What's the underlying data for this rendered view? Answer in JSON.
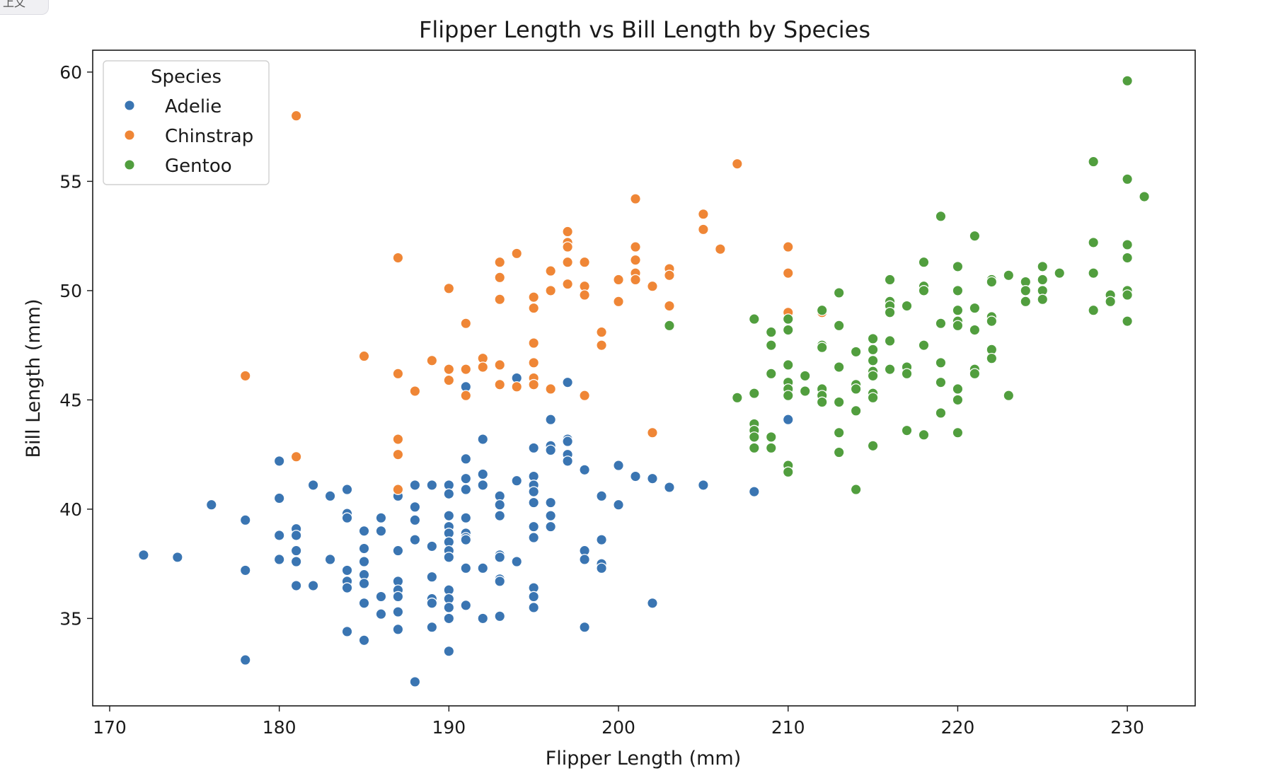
{
  "corner_tab": {
    "label": "上文"
  },
  "chart_data": {
    "type": "scatter",
    "title": "Flipper Length vs Bill Length by Species",
    "xlabel": "Flipper Length (mm)",
    "ylabel": "Bill Length (mm)",
    "xlim": [
      169,
      234
    ],
    "ylim": [
      31.0,
      61.0
    ],
    "xticks": [
      170,
      180,
      190,
      200,
      210,
      220,
      230
    ],
    "yticks": [
      35,
      40,
      45,
      50,
      55,
      60
    ],
    "grid": false,
    "legend": {
      "title": "Species",
      "placement": "upper-left"
    },
    "series": [
      {
        "name": "Adelie",
        "color": "#3a75b2",
        "points": [
          [
            172,
            37.9
          ],
          [
            174,
            37.8
          ],
          [
            176,
            40.2
          ],
          [
            178,
            39.5
          ],
          [
            178,
            37.2
          ],
          [
            178,
            33.1
          ],
          [
            180,
            42.2
          ],
          [
            180,
            40.5
          ],
          [
            180,
            38.8
          ],
          [
            180,
            37.7
          ],
          [
            181,
            39.1
          ],
          [
            181,
            38.8
          ],
          [
            181,
            38.1
          ],
          [
            181,
            37.6
          ],
          [
            181,
            36.5
          ],
          [
            182,
            41.1
          ],
          [
            182,
            36.5
          ],
          [
            183,
            40.6
          ],
          [
            183,
            37.7
          ],
          [
            184,
            40.9
          ],
          [
            184,
            39.8
          ],
          [
            184,
            39.6
          ],
          [
            184,
            37.2
          ],
          [
            184,
            36.7
          ],
          [
            184,
            36.4
          ],
          [
            184,
            34.4
          ],
          [
            185,
            39.0
          ],
          [
            185,
            38.2
          ],
          [
            185,
            37.6
          ],
          [
            185,
            37.0
          ],
          [
            185,
            36.6
          ],
          [
            185,
            35.7
          ],
          [
            185,
            34.0
          ],
          [
            186,
            39.6
          ],
          [
            186,
            39.0
          ],
          [
            186,
            36.0
          ],
          [
            186,
            35.2
          ],
          [
            187,
            40.6
          ],
          [
            187,
            38.1
          ],
          [
            187,
            36.7
          ],
          [
            187,
            36.3
          ],
          [
            187,
            36.0
          ],
          [
            187,
            35.3
          ],
          [
            187,
            34.5
          ],
          [
            188,
            41.1
          ],
          [
            188,
            40.1
          ],
          [
            188,
            39.5
          ],
          [
            188,
            38.6
          ],
          [
            188,
            32.1
          ],
          [
            189,
            41.1
          ],
          [
            189,
            38.3
          ],
          [
            189,
            36.9
          ],
          [
            189,
            35.9
          ],
          [
            189,
            35.7
          ],
          [
            189,
            34.6
          ],
          [
            190,
            41.1
          ],
          [
            190,
            40.7
          ],
          [
            190,
            39.7
          ],
          [
            190,
            39.2
          ],
          [
            190,
            38.9
          ],
          [
            190,
            38.5
          ],
          [
            190,
            38.1
          ],
          [
            190,
            37.8
          ],
          [
            190,
            36.3
          ],
          [
            190,
            35.9
          ],
          [
            190,
            35.5
          ],
          [
            190,
            35.0
          ],
          [
            190,
            33.5
          ],
          [
            191,
            45.6
          ],
          [
            191,
            42.3
          ],
          [
            191,
            41.4
          ],
          [
            191,
            40.9
          ],
          [
            191,
            39.6
          ],
          [
            191,
            38.9
          ],
          [
            191,
            38.7
          ],
          [
            191,
            38.6
          ],
          [
            191,
            37.3
          ],
          [
            191,
            35.6
          ],
          [
            192,
            43.2
          ],
          [
            192,
            41.6
          ],
          [
            192,
            41.1
          ],
          [
            192,
            37.3
          ],
          [
            192,
            35.0
          ],
          [
            193,
            40.6
          ],
          [
            193,
            40.2
          ],
          [
            193,
            39.7
          ],
          [
            193,
            37.9
          ],
          [
            193,
            37.8
          ],
          [
            193,
            36.8
          ],
          [
            193,
            36.7
          ],
          [
            193,
            35.1
          ],
          [
            194,
            46.0
          ],
          [
            194,
            41.3
          ],
          [
            194,
            37.6
          ],
          [
            195,
            42.8
          ],
          [
            195,
            41.5
          ],
          [
            195,
            41.1
          ],
          [
            195,
            40.8
          ],
          [
            195,
            40.3
          ],
          [
            195,
            39.2
          ],
          [
            195,
            38.7
          ],
          [
            195,
            36.4
          ],
          [
            195,
            36.0
          ],
          [
            195,
            35.5
          ],
          [
            196,
            44.1
          ],
          [
            196,
            42.9
          ],
          [
            196,
            42.7
          ],
          [
            196,
            40.3
          ],
          [
            196,
            39.7
          ],
          [
            196,
            39.2
          ],
          [
            197,
            45.8
          ],
          [
            197,
            43.2
          ],
          [
            197,
            43.1
          ],
          [
            197,
            42.5
          ],
          [
            197,
            42.2
          ],
          [
            198,
            41.8
          ],
          [
            198,
            38.1
          ],
          [
            198,
            37.7
          ],
          [
            198,
            34.6
          ],
          [
            199,
            40.6
          ],
          [
            199,
            38.6
          ],
          [
            199,
            37.5
          ],
          [
            199,
            37.3
          ],
          [
            200,
            42.0
          ],
          [
            200,
            40.2
          ],
          [
            201,
            41.5
          ],
          [
            202,
            41.4
          ],
          [
            202,
            35.7
          ],
          [
            203,
            41.0
          ],
          [
            205,
            41.1
          ],
          [
            208,
            40.8
          ],
          [
            210,
            44.1
          ]
        ]
      },
      {
        "name": "Chinstrap",
        "color": "#ef8636",
        "points": [
          [
            178,
            46.1
          ],
          [
            181,
            58.0
          ],
          [
            181,
            42.4
          ],
          [
            185,
            47.0
          ],
          [
            187,
            51.5
          ],
          [
            187,
            46.2
          ],
          [
            187,
            43.2
          ],
          [
            187,
            42.5
          ],
          [
            187,
            40.9
          ],
          [
            188,
            45.4
          ],
          [
            189,
            46.8
          ],
          [
            190,
            50.1
          ],
          [
            190,
            46.4
          ],
          [
            190,
            45.9
          ],
          [
            191,
            48.5
          ],
          [
            191,
            46.4
          ],
          [
            191,
            45.2
          ],
          [
            192,
            46.9
          ],
          [
            192,
            46.5
          ],
          [
            193,
            51.3
          ],
          [
            193,
            50.6
          ],
          [
            193,
            49.6
          ],
          [
            193,
            46.6
          ],
          [
            193,
            45.7
          ],
          [
            194,
            51.7
          ],
          [
            194,
            45.6
          ],
          [
            195,
            49.7
          ],
          [
            195,
            49.2
          ],
          [
            195,
            47.6
          ],
          [
            195,
            46.7
          ],
          [
            195,
            46.0
          ],
          [
            195,
            45.7
          ],
          [
            196,
            50.9
          ],
          [
            196,
            50.0
          ],
          [
            196,
            45.5
          ],
          [
            197,
            52.7
          ],
          [
            197,
            52.2
          ],
          [
            197,
            52.0
          ],
          [
            197,
            51.3
          ],
          [
            197,
            50.3
          ],
          [
            198,
            51.3
          ],
          [
            198,
            50.2
          ],
          [
            198,
            49.8
          ],
          [
            198,
            45.2
          ],
          [
            199,
            48.1
          ],
          [
            199,
            47.5
          ],
          [
            200,
            50.5
          ],
          [
            200,
            49.5
          ],
          [
            201,
            54.2
          ],
          [
            201,
            52.0
          ],
          [
            201,
            51.4
          ],
          [
            201,
            50.8
          ],
          [
            201,
            50.5
          ],
          [
            202,
            50.2
          ],
          [
            202,
            43.5
          ],
          [
            203,
            51.0
          ],
          [
            203,
            50.7
          ],
          [
            203,
            49.3
          ],
          [
            205,
            53.5
          ],
          [
            205,
            52.8
          ],
          [
            206,
            51.9
          ],
          [
            207,
            55.8
          ],
          [
            210,
            52.0
          ],
          [
            210,
            50.8
          ],
          [
            210,
            49.0
          ],
          [
            212,
            49.0
          ]
        ]
      },
      {
        "name": "Gentoo",
        "color": "#519e3e",
        "points": [
          [
            203,
            48.4
          ],
          [
            207,
            45.1
          ],
          [
            208,
            48.7
          ],
          [
            208,
            45.3
          ],
          [
            208,
            43.9
          ],
          [
            208,
            43.6
          ],
          [
            208,
            43.3
          ],
          [
            208,
            42.8
          ],
          [
            209,
            48.1
          ],
          [
            209,
            47.5
          ],
          [
            209,
            46.2
          ],
          [
            209,
            43.3
          ],
          [
            209,
            42.8
          ],
          [
            210,
            48.7
          ],
          [
            210,
            48.2
          ],
          [
            210,
            46.6
          ],
          [
            210,
            45.8
          ],
          [
            210,
            45.5
          ],
          [
            210,
            45.2
          ],
          [
            210,
            42.0
          ],
          [
            210,
            41.7
          ],
          [
            211,
            46.1
          ],
          [
            211,
            45.4
          ],
          [
            212,
            49.1
          ],
          [
            212,
            47.5
          ],
          [
            212,
            47.4
          ],
          [
            212,
            45.5
          ],
          [
            212,
            45.2
          ],
          [
            212,
            44.9
          ],
          [
            213,
            49.9
          ],
          [
            213,
            48.4
          ],
          [
            213,
            46.5
          ],
          [
            213,
            44.9
          ],
          [
            213,
            43.5
          ],
          [
            213,
            42.6
          ],
          [
            214,
            47.2
          ],
          [
            214,
            45.7
          ],
          [
            214,
            45.5
          ],
          [
            214,
            44.5
          ],
          [
            214,
            40.9
          ],
          [
            215,
            47.8
          ],
          [
            215,
            47.3
          ],
          [
            215,
            46.8
          ],
          [
            215,
            46.3
          ],
          [
            215,
            46.1
          ],
          [
            215,
            45.3
          ],
          [
            215,
            45.1
          ],
          [
            215,
            42.9
          ],
          [
            216,
            50.5
          ],
          [
            216,
            49.5
          ],
          [
            216,
            49.3
          ],
          [
            216,
            49.0
          ],
          [
            216,
            47.7
          ],
          [
            216,
            46.4
          ],
          [
            217,
            49.3
          ],
          [
            217,
            46.5
          ],
          [
            217,
            46.2
          ],
          [
            217,
            43.6
          ],
          [
            218,
            51.3
          ],
          [
            218,
            50.2
          ],
          [
            218,
            50.0
          ],
          [
            218,
            47.5
          ],
          [
            218,
            43.4
          ],
          [
            219,
            53.4
          ],
          [
            219,
            48.5
          ],
          [
            219,
            46.7
          ],
          [
            219,
            45.8
          ],
          [
            219,
            44.4
          ],
          [
            220,
            51.1
          ],
          [
            220,
            50.0
          ],
          [
            220,
            49.1
          ],
          [
            220,
            48.6
          ],
          [
            220,
            48.4
          ],
          [
            220,
            45.5
          ],
          [
            220,
            45.0
          ],
          [
            220,
            43.5
          ],
          [
            221,
            52.5
          ],
          [
            221,
            49.2
          ],
          [
            221,
            48.2
          ],
          [
            221,
            46.4
          ],
          [
            221,
            46.2
          ],
          [
            222,
            50.5
          ],
          [
            222,
            50.4
          ],
          [
            222,
            48.8
          ],
          [
            222,
            48.6
          ],
          [
            222,
            47.3
          ],
          [
            222,
            46.9
          ],
          [
            223,
            50.7
          ],
          [
            223,
            45.2
          ],
          [
            224,
            50.4
          ],
          [
            224,
            50.0
          ],
          [
            224,
            49.5
          ],
          [
            225,
            51.1
          ],
          [
            225,
            50.5
          ],
          [
            225,
            50.0
          ],
          [
            225,
            49.6
          ],
          [
            226,
            50.8
          ],
          [
            228,
            55.9
          ],
          [
            228,
            52.2
          ],
          [
            228,
            50.8
          ],
          [
            228,
            49.1
          ],
          [
            229,
            49.8
          ],
          [
            229,
            49.5
          ],
          [
            230,
            59.6
          ],
          [
            230,
            55.1
          ],
          [
            230,
            52.1
          ],
          [
            230,
            51.5
          ],
          [
            230,
            50.0
          ],
          [
            230,
            49.8
          ],
          [
            230,
            48.6
          ],
          [
            231,
            54.3
          ]
        ]
      }
    ]
  }
}
